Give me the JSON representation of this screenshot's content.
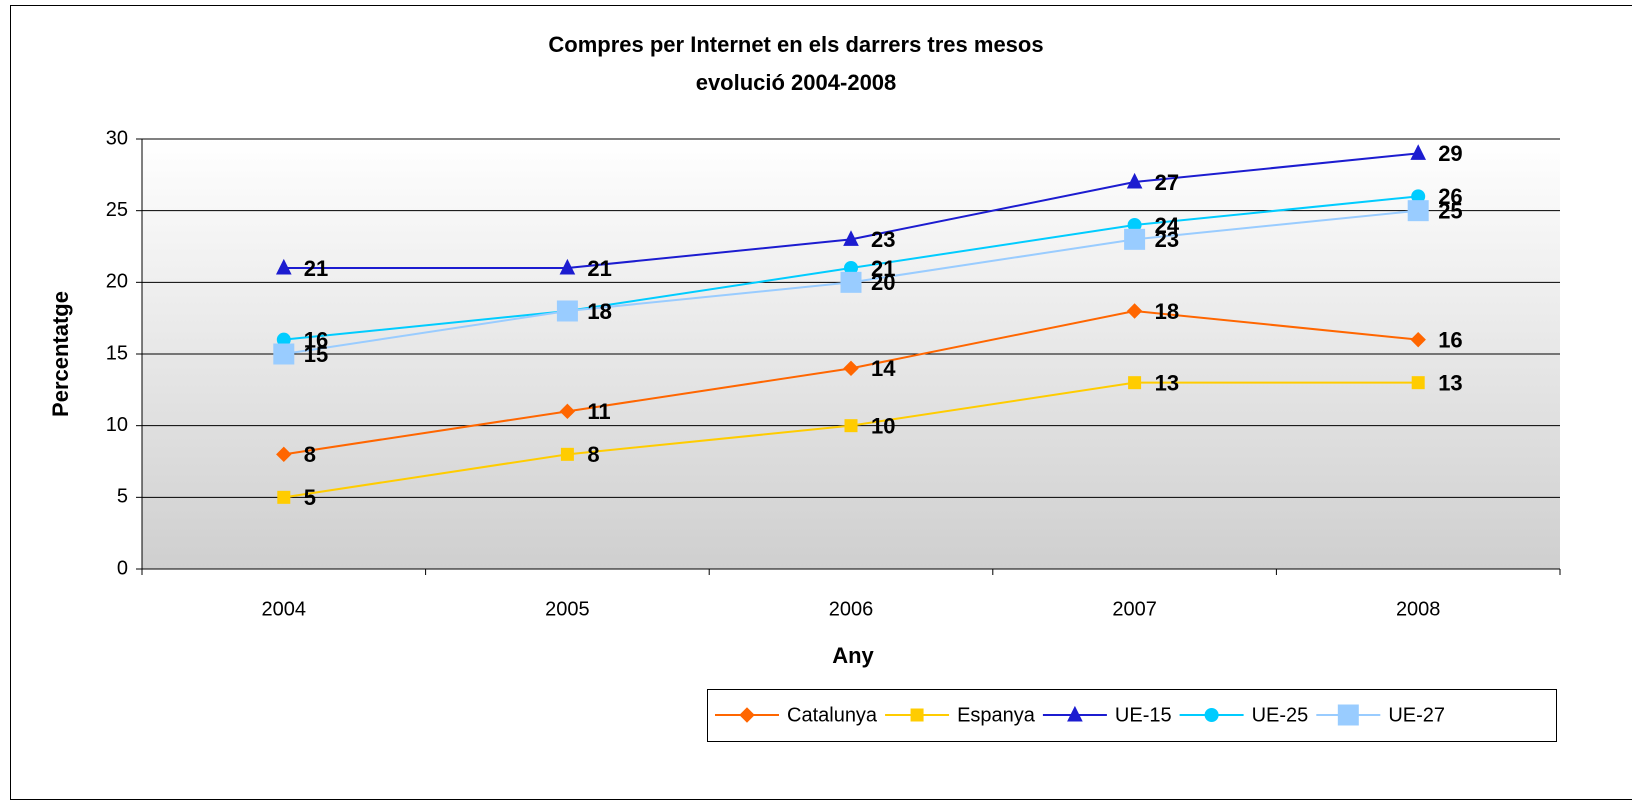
{
  "chart_data": {
    "type": "line",
    "title": "Compres per Internet en els darrers tres mesos",
    "subtitle": "evolució 2004-2008",
    "xlabel": "Any",
    "ylabel": "Percentatge",
    "categories": [
      "2004",
      "2005",
      "2006",
      "2007",
      "2008"
    ],
    "series": [
      {
        "name": "Catalunya",
        "color": "#ff6600",
        "marker": "diamond",
        "values": [
          8,
          11,
          14,
          18,
          16
        ]
      },
      {
        "name": "Espanya",
        "color": "#ffcc00",
        "marker": "square",
        "values": [
          5,
          8,
          10,
          13,
          13
        ]
      },
      {
        "name": "UE-15",
        "color": "#1c1cd0",
        "marker": "triangle",
        "values": [
          21,
          21,
          23,
          27,
          29
        ]
      },
      {
        "name": "UE-25",
        "color": "#00ccff",
        "marker": "circle",
        "values": [
          16,
          18,
          21,
          24,
          26
        ]
      },
      {
        "name": "UE-27",
        "color": "#99ccff",
        "marker": "bigsquare",
        "values": [
          15,
          18,
          20,
          23,
          25
        ]
      }
    ],
    "ylim": [
      0,
      30
    ],
    "yticks": [
      0,
      5,
      10,
      15,
      20,
      25,
      30
    ],
    "grid": true,
    "legend": "bottom-right"
  }
}
